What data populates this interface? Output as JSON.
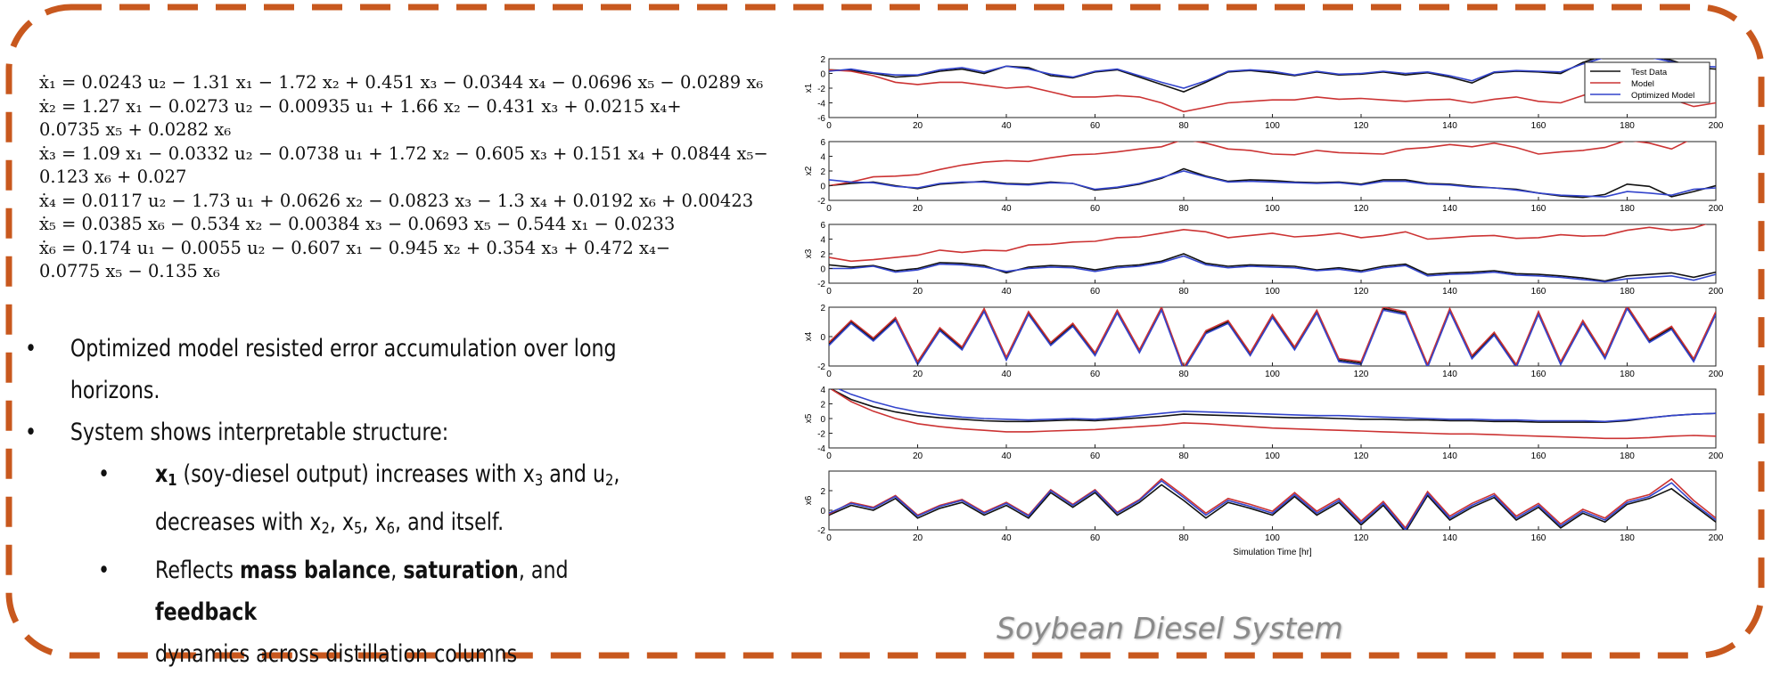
{
  "equations": [
    "ẋ₁ = 0.0243 u₂ − 1.31 x₁ − 1.72 x₂ + 0.451 x₃ − 0.0344 x₄ − 0.0696 x₅ − 0.0289 x₆",
    "ẋ₂ = 1.27 x₁ − 0.0273 u₂ − 0.00935 u₁ + 1.66 x₂ − 0.431 x₃ + 0.0215 x₄+",
    "0.0735 x₅ + 0.0282 x₆",
    "ẋ₃ = 1.09 x₁ − 0.0332 u₂ − 0.0738 u₁ + 1.72 x₂ − 0.605 x₃ + 0.151 x₄ + 0.0844 x₅−",
    "0.123 x₆ + 0.027",
    "ẋ₄ = 0.0117 u₂ − 1.73 u₁ + 0.0626 x₂ − 0.0823 x₃ − 1.3 x₄ + 0.0192 x₆ + 0.00423",
    "ẋ₅ = 0.0385 x₆ − 0.534 x₂ − 0.00384 x₃ − 0.0693 x₅ − 0.544 x₁ − 0.0233",
    "ẋ₆ = 0.174 u₁ − 0.0055 u₂ − 0.607 x₁ − 0.945 x₂ + 0.354 x₃ + 0.472 x₄−",
    "0.0775 x₅ − 0.135 x₆"
  ],
  "bullets": {
    "b1_line1": "Optimized model resisted error accumulation over long",
    "b1_line2": "horizons.",
    "b2": "System shows interpretable structure:",
    "s1_x": "x",
    "s1_sub": "1",
    "s1_rest1": " (soy-diesel output) increases with x",
    "s1_sub3": "3",
    "s1_and": " and u",
    "s1_sub2": "2",
    "s1_comma": ",",
    "s1_l2a": "decreases with x",
    "s1_l2s2": "2",
    "s1_l2b": ", x",
    "s1_l2s5": "5",
    "s1_l2c": ", x",
    "s1_l2s6": "6",
    "s1_l2d": ", and itself.",
    "s2_a": "Reflects ",
    "s2_mass": "mass balance",
    "s2_b": ", ",
    "s2_sat": "saturation",
    "s2_c": ", and ",
    "s2_fb": "feedback",
    "s2_l2": "dynamics across distillation columns"
  },
  "caption": "Soybean Diesel System",
  "colors": {
    "border": "#c8581e",
    "test": "#111111",
    "model": "#cc3333",
    "optimized": "#3344cc"
  },
  "chart_data": {
    "type": "line",
    "xlabel": "Simulation Time [hr]",
    "xlim": [
      0,
      200
    ],
    "xticks": [
      0,
      20,
      40,
      60,
      80,
      100,
      120,
      140,
      160,
      180,
      200
    ],
    "legend": {
      "placement": "top-right",
      "entries": [
        "Test Data",
        "Model",
        "Optimized Model"
      ]
    },
    "x": [
      0,
      5,
      10,
      15,
      20,
      25,
      30,
      35,
      40,
      45,
      50,
      55,
      60,
      65,
      70,
      75,
      80,
      85,
      90,
      95,
      100,
      105,
      110,
      115,
      120,
      125,
      130,
      135,
      140,
      145,
      150,
      155,
      160,
      165,
      170,
      175,
      180,
      185,
      190,
      195,
      200
    ],
    "panels": [
      {
        "ylabel": "x1",
        "ylim": [
          -6,
          2
        ],
        "yticks": [
          2,
          0,
          -2,
          -4,
          -6
        ],
        "series": [
          {
            "name": "Test Data",
            "values": [
              0.5,
              0.4,
              0,
              -0.5,
              -0.3,
              0.3,
              0.6,
              0,
              1,
              0.8,
              -0.3,
              -0.6,
              0.2,
              0.5,
              -0.5,
              -1.5,
              -2.5,
              -1.2,
              0.2,
              0.4,
              0.1,
              -0.3,
              0.2,
              -0.2,
              -0.1,
              0.2,
              -0.2,
              0.1,
              -0.5,
              -1.3,
              0.1,
              0.3,
              0.2,
              0,
              1.5,
              2.5,
              2.6,
              2.4,
              1.8,
              0.8,
              0.6
            ]
          },
          {
            "name": "Model",
            "values": [
              0.5,
              0.3,
              -0.3,
              -1.2,
              -1.5,
              -1.2,
              -1.2,
              -1.6,
              -2,
              -1.8,
              -2.5,
              -3.2,
              -3.2,
              -3,
              -3.2,
              -4,
              -5.2,
              -4.6,
              -4,
              -3.8,
              -3.6,
              -3.6,
              -3.2,
              -3.5,
              -3.4,
              -3.6,
              -3.8,
              -3.6,
              -3.5,
              -4,
              -3.5,
              -3.2,
              -3.8,
              -4,
              -3,
              -2,
              -1.8,
              -2.8,
              -3.5,
              -4.5,
              -4
            ]
          },
          {
            "name": "Optimized Model",
            "values": [
              0.3,
              0.6,
              0.1,
              -0.2,
              -0.2,
              0.5,
              0.8,
              0.2,
              1,
              0.6,
              -0.1,
              -0.5,
              0.3,
              0.6,
              -0.3,
              -1.2,
              -2,
              -1,
              0.3,
              0.5,
              0.3,
              -0.2,
              0.3,
              -0.1,
              0,
              0.3,
              0,
              0.2,
              -0.3,
              -1,
              0.2,
              0.4,
              0.3,
              0.2,
              1.3,
              2.2,
              2.3,
              2.2,
              1.6,
              1,
              0.9
            ]
          }
        ]
      },
      {
        "ylabel": "x2",
        "ylim": [
          -2,
          6
        ],
        "yticks": [
          6,
          4,
          2,
          0,
          -2
        ],
        "series": [
          {
            "name": "Test Data",
            "values": [
              0,
              0.3,
              0.5,
              0,
              -0.4,
              0.2,
              0.4,
              0.6,
              0.3,
              0.2,
              0.5,
              0.3,
              -0.6,
              -0.3,
              0.2,
              1,
              2.3,
              1.3,
              0.6,
              0.8,
              0.7,
              0.5,
              0.4,
              0.5,
              0.2,
              0.8,
              0.8,
              0.3,
              0.2,
              -0.1,
              -0.3,
              -0.5,
              -1,
              -1.4,
              -1.6,
              -1.2,
              0.2,
              -0.1,
              -1.5,
              -0.8,
              0
            ]
          },
          {
            "name": "Model",
            "values": [
              0,
              0.5,
              1.2,
              1.3,
              1.5,
              2.2,
              2.8,
              3.2,
              3.4,
              3.3,
              3.8,
              4.2,
              4.3,
              4.6,
              5,
              5.3,
              6.3,
              5.8,
              5,
              4.8,
              4.3,
              4.2,
              4.8,
              4.5,
              4.4,
              4.3,
              5,
              5.2,
              5.6,
              5.3,
              5.8,
              5.2,
              4.3,
              4.6,
              4.8,
              5.2,
              6.2,
              5.8,
              5,
              6.5,
              7
            ]
          },
          {
            "name": "Optimized Model",
            "values": [
              0.8,
              0.5,
              0.4,
              -0.1,
              -0.3,
              0.3,
              0.5,
              0.5,
              0.2,
              0.1,
              0.4,
              0.3,
              -0.5,
              -0.2,
              0.3,
              1.1,
              2,
              1.2,
              0.5,
              0.6,
              0.5,
              0.4,
              0.3,
              0.4,
              0.1,
              0.6,
              0.6,
              0.2,
              0.1,
              -0.2,
              -0.3,
              -0.6,
              -1,
              -1.3,
              -1.4,
              -1.5,
              -0.8,
              -1,
              -1.3,
              -0.5,
              -0.3
            ]
          }
        ]
      },
      {
        "ylabel": "x3",
        "ylim": [
          -2,
          6
        ],
        "yticks": [
          6,
          4,
          2,
          0,
          -2
        ],
        "series": [
          {
            "name": "Test Data",
            "values": [
              0.5,
              0.2,
              0.4,
              -0.3,
              0,
              0.8,
              0.7,
              0.4,
              -0.6,
              0.2,
              0.4,
              0.3,
              -0.2,
              0.3,
              0.5,
              1,
              2,
              0.7,
              0.3,
              0.5,
              0.4,
              0.3,
              -0.2,
              0.1,
              -0.3,
              0.3,
              0.6,
              -0.8,
              -0.6,
              -0.5,
              -0.3,
              -0.7,
              -0.8,
              -1,
              -1.3,
              -1.7,
              -1,
              -0.8,
              -0.6,
              -1.2,
              -0.5
            ]
          },
          {
            "name": "Model",
            "values": [
              1.5,
              1,
              1.2,
              1.5,
              1.8,
              2.5,
              2.2,
              2.5,
              2.4,
              3.2,
              3.3,
              3.6,
              3.7,
              4.2,
              4.3,
              4.8,
              5.3,
              5,
              4.2,
              4.5,
              4.8,
              4.3,
              4.5,
              4.8,
              4.2,
              4.5,
              5,
              4,
              4.2,
              4.4,
              4.5,
              4.1,
              4.2,
              4.6,
              4.4,
              4.5,
              5.2,
              5.6,
              5.2,
              5.5,
              6.5
            ]
          },
          {
            "name": "Optimized Model",
            "values": [
              0,
              0,
              0.3,
              -0.5,
              -0.2,
              0.6,
              0.5,
              0.2,
              -0.4,
              0,
              0.2,
              0.1,
              -0.4,
              0.1,
              0.3,
              0.8,
              1.7,
              0.5,
              0.1,
              0.3,
              0.2,
              0.1,
              -0.3,
              -0.1,
              -0.5,
              0.1,
              0.4,
              -1,
              -0.8,
              -0.7,
              -0.5,
              -0.9,
              -1,
              -1.2,
              -1.5,
              -1.8,
              -1.4,
              -1.2,
              -1,
              -1.6,
              -0.8
            ]
          }
        ]
      },
      {
        "ylabel": "x4",
        "ylim": [
          -2,
          2
        ],
        "yticks": [
          2,
          0,
          -2
        ],
        "series": [
          {
            "name": "Test Data",
            "values": [
              -0.5,
              1,
              -0.2,
              1.2,
              -1.8,
              0.5,
              -0.8,
              1.8,
              -1.5,
              1.6,
              -0.5,
              0.8,
              -1.2,
              1.7,
              -1,
              1.9,
              -2.2,
              0.3,
              1,
              -1.2,
              1.4,
              -0.8,
              1.7,
              -1.6,
              -1.8,
              1.9,
              1.6,
              -2,
              1.8,
              -1.4,
              0.2,
              -2,
              1.6,
              -1.8,
              1,
              -1.4,
              2,
              -0.3,
              0.6,
              -1.6,
              1.6
            ]
          },
          {
            "name": "Model",
            "values": [
              -0.4,
              1.1,
              -0.1,
              1.3,
              -1.7,
              0.6,
              -0.7,
              1.9,
              -1.4,
              1.7,
              -0.4,
              0.9,
              -1.1,
              1.8,
              -0.9,
              2,
              -2.1,
              0.4,
              1.1,
              -1.1,
              1.5,
              -0.7,
              1.8,
              -1.5,
              -1.7,
              2,
              1.7,
              -1.9,
              1.9,
              -1.3,
              0.3,
              -1.9,
              1.7,
              -1.7,
              1.1,
              -1.3,
              2.1,
              -0.2,
              0.7,
              -1.5,
              1.7
            ]
          },
          {
            "name": "Optimized Model",
            "values": [
              -0.6,
              0.9,
              -0.3,
              1.1,
              -1.9,
              0.4,
              -0.9,
              1.7,
              -1.6,
              1.5,
              -0.6,
              0.7,
              -1.3,
              1.6,
              -1.1,
              1.8,
              -2.3,
              0.2,
              0.9,
              -1.3,
              1.3,
              -0.9,
              1.6,
              -1.7,
              -1.9,
              1.8,
              1.5,
              -2.1,
              1.7,
              -1.5,
              0.1,
              -2.1,
              1.5,
              -1.9,
              0.9,
              -1.5,
              1.9,
              -0.4,
              0.5,
              -1.7,
              1.5
            ]
          }
        ]
      },
      {
        "ylabel": "x5",
        "ylim": [
          -4,
          4
        ],
        "yticks": [
          4,
          2,
          0,
          -2,
          -4
        ],
        "series": [
          {
            "name": "Test Data",
            "values": [
              4.2,
              2.6,
              1.6,
              0.9,
              0.4,
              0.1,
              -0.1,
              -0.3,
              -0.4,
              -0.4,
              -0.3,
              -0.2,
              -0.3,
              -0.1,
              0.1,
              0.3,
              0.6,
              0.5,
              0.4,
              0.3,
              0.2,
              0.1,
              0.1,
              0,
              -0.1,
              -0.1,
              -0.2,
              -0.2,
              -0.3,
              -0.3,
              -0.4,
              -0.4,
              -0.5,
              -0.5,
              -0.5,
              -0.5,
              -0.3,
              0.1,
              0.4,
              0.6,
              0.7
            ]
          },
          {
            "name": "Model",
            "values": [
              4.2,
              2.3,
              1,
              0,
              -0.7,
              -1.1,
              -1.4,
              -1.6,
              -1.8,
              -1.8,
              -1.7,
              -1.6,
              -1.5,
              -1.3,
              -1.1,
              -0.9,
              -0.6,
              -0.7,
              -0.9,
              -1.1,
              -1.3,
              -1.4,
              -1.5,
              -1.6,
              -1.7,
              -1.8,
              -1.9,
              -2,
              -2.1,
              -2.1,
              -2.2,
              -2.3,
              -2.4,
              -2.5,
              -2.6,
              -2.7,
              -2.7,
              -2.6,
              -2.4,
              -2.3,
              -2.4
            ]
          },
          {
            "name": "Optimized Model",
            "values": [
              4.6,
              3.3,
              2.3,
              1.5,
              0.9,
              0.5,
              0.2,
              0,
              -0.1,
              -0.2,
              -0.1,
              0,
              -0.1,
              0.1,
              0.4,
              0.7,
              1,
              0.9,
              0.8,
              0.7,
              0.6,
              0.5,
              0.4,
              0.4,
              0.3,
              0.2,
              0.1,
              0,
              -0.1,
              -0.1,
              -0.2,
              -0.2,
              -0.3,
              -0.3,
              -0.3,
              -0.4,
              -0.2,
              0.1,
              0.4,
              0.6,
              0.7
            ]
          }
        ]
      },
      {
        "ylabel": "x6",
        "ylim": [
          -2,
          4
        ],
        "yticks": [
          2,
          0,
          -2
        ],
        "series": [
          {
            "name": "Test Data",
            "values": [
              -0.5,
              0.5,
              0,
              1.2,
              -0.8,
              0.2,
              0.8,
              -0.5,
              0.5,
              -0.8,
              1.8,
              0.3,
              1.8,
              -0.5,
              0.8,
              2.6,
              1,
              -0.8,
              0.8,
              0.2,
              -0.5,
              1.4,
              -0.5,
              0.8,
              -1.5,
              0.5,
              -2.2,
              1.5,
              -1,
              0.3,
              1.3,
              -1,
              0.3,
              -1.8,
              -0.3,
              -1.2,
              0.6,
              1.2,
              2.2,
              0.5,
              -1.2
            ]
          },
          {
            "name": "Model",
            "values": [
              -0.4,
              0.8,
              0.3,
              1.5,
              -0.5,
              0.5,
              1.1,
              -0.2,
              0.8,
              -0.5,
              2.1,
              0.6,
              2.1,
              -0.2,
              1.1,
              3.2,
              1.5,
              -0.3,
              1.2,
              0.6,
              -0.1,
              1.8,
              -0.1,
              1.2,
              -1.1,
              0.9,
              -1.8,
              1.9,
              -0.6,
              0.7,
              1.7,
              -0.6,
              0.7,
              -1.4,
              0.1,
              -0.8,
              1,
              1.6,
              3.2,
              1,
              -0.8
            ]
          },
          {
            "name": "Optimized Model",
            "values": [
              -0.3,
              0.7,
              0.2,
              1.4,
              -0.6,
              0.4,
              1,
              -0.3,
              0.7,
              -0.6,
              2,
              0.5,
              2,
              -0.3,
              1,
              3,
              1.3,
              -0.5,
              1,
              0.4,
              -0.3,
              1.6,
              -0.3,
              1,
              -1.3,
              0.7,
              -2,
              1.7,
              -0.8,
              0.5,
              1.5,
              -0.8,
              0.5,
              -1.6,
              -0.1,
              -1,
              0.8,
              1.4,
              2.8,
              0.7,
              -1
            ]
          }
        ]
      }
    ]
  }
}
